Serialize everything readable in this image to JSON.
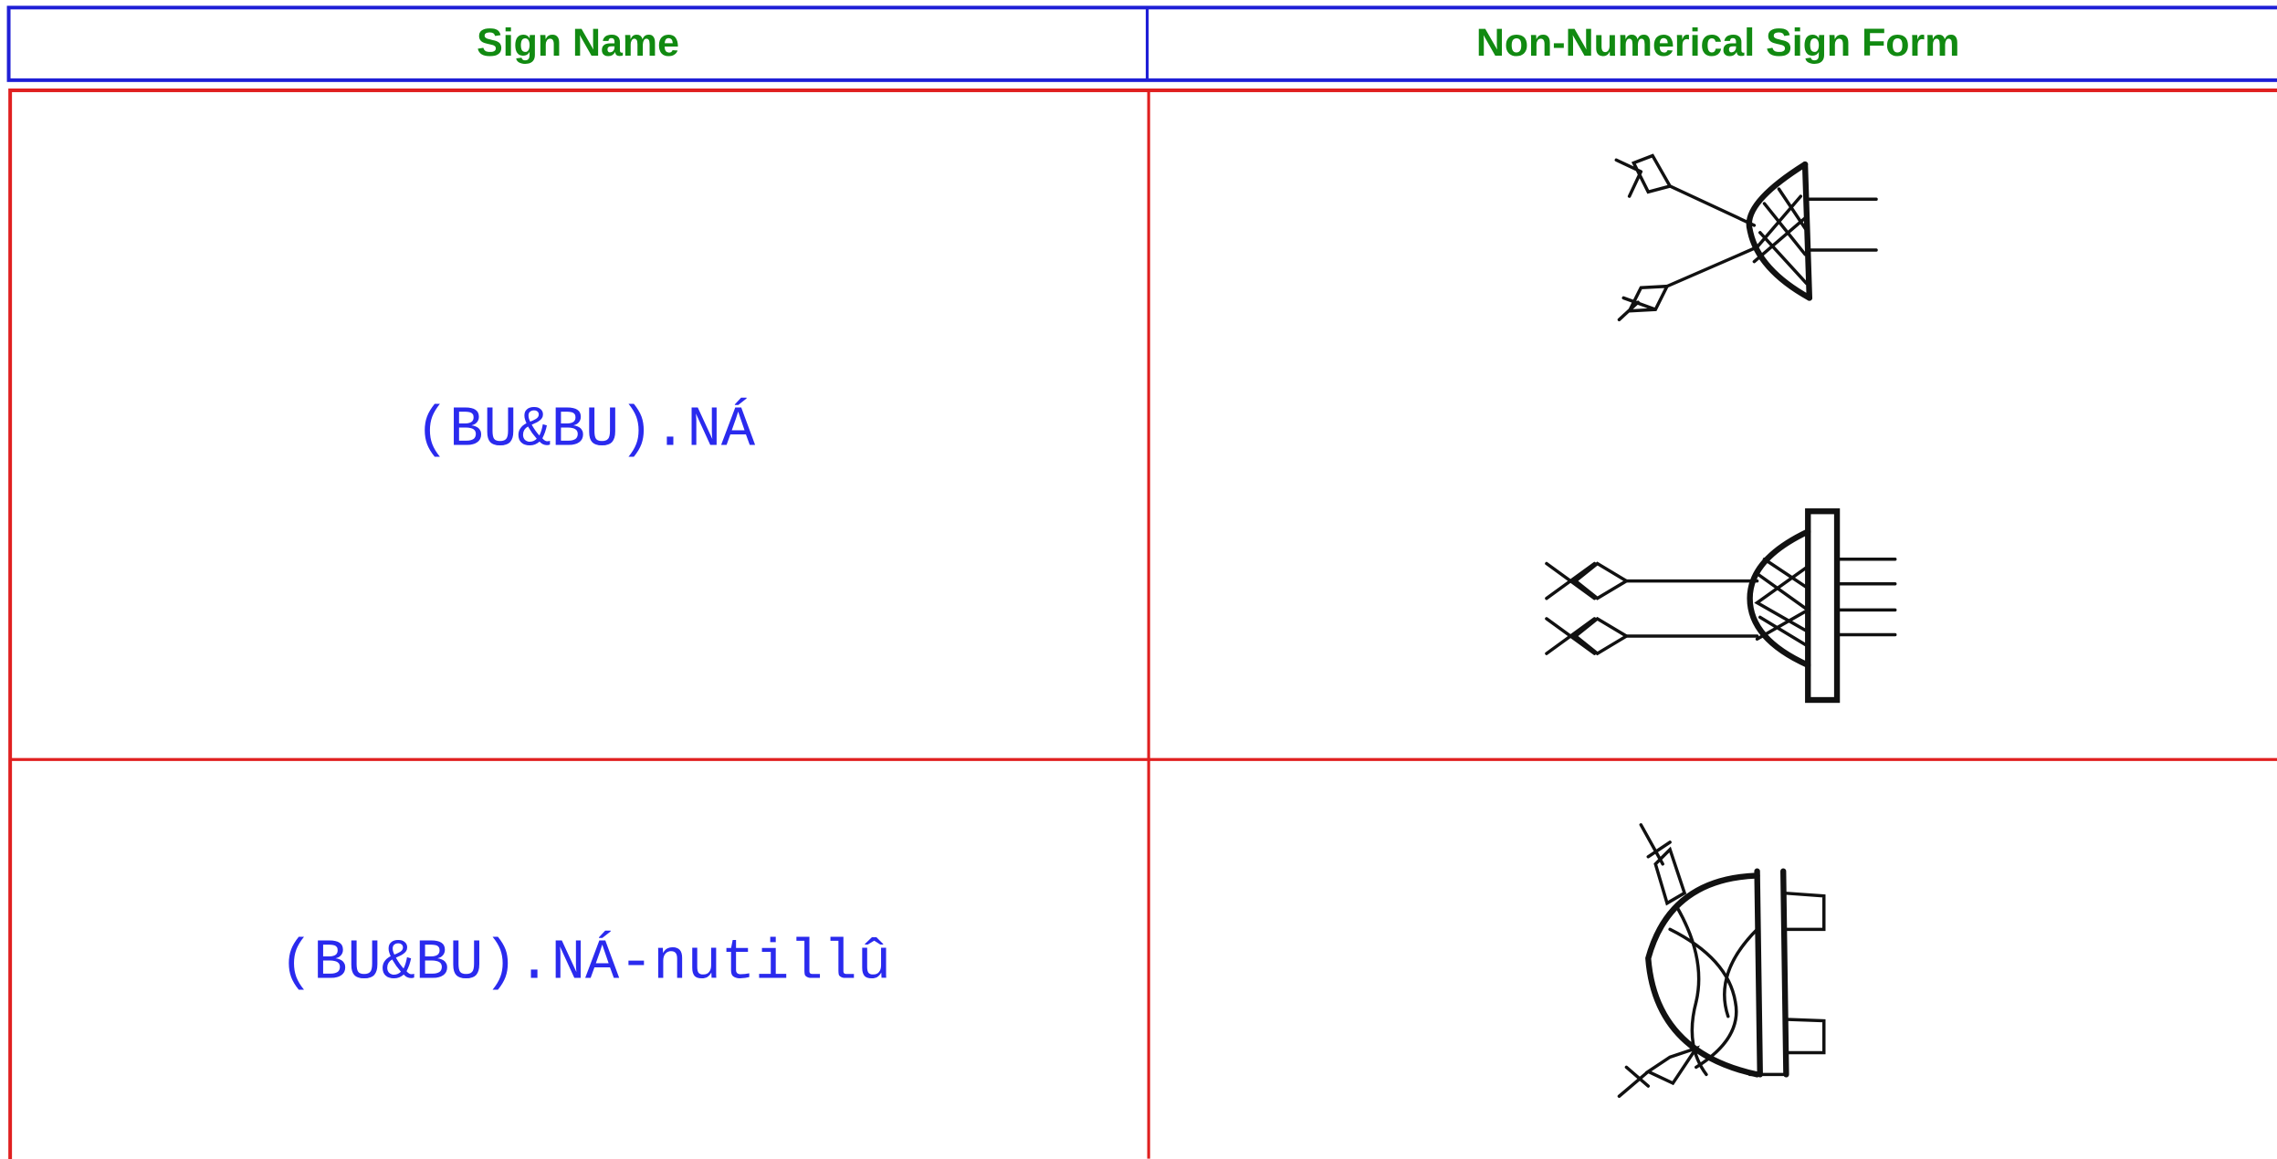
{
  "table": {
    "header": [
      "Sign Name",
      "Non-Numerical Sign Form"
    ],
    "rows": [
      [
        "(BU&BU).NÁ"
      ],
      [
        "(BU&BU).NÁ-nutillû"
      ]
    ]
  }
}
